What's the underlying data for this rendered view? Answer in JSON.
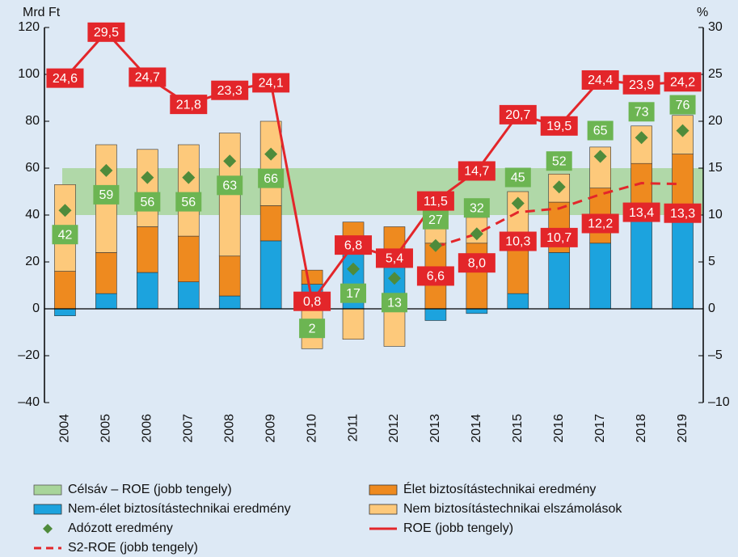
{
  "chart_data": {
    "type": "combo",
    "y_label": "Mrd Ft",
    "y2_label": "%",
    "categories": [
      "2004",
      "2005",
      "2006",
      "2007",
      "2008",
      "2009",
      "2010",
      "2011",
      "2012",
      "2013",
      "2014",
      "2015",
      "2016",
      "2017",
      "2018",
      "2019"
    ],
    "ylim": [
      -40,
      120
    ],
    "yticks": [
      {
        "value": -40,
        "label": "–40"
      },
      {
        "value": -20,
        "label": "–20"
      },
      0,
      20,
      40,
      60,
      80,
      100,
      120
    ],
    "y2lim": [
      -10,
      30
    ],
    "y2ticks": [
      {
        "value": -10,
        "label": "–10"
      },
      {
        "value": -5,
        "label": "–5"
      },
      0,
      5,
      10,
      15,
      20,
      25,
      30
    ],
    "band": {
      "name": "Célsáv – ROE (jobb tengely)",
      "range": [
        10,
        15
      ],
      "color": "#a8d59a",
      "axis": "y2"
    },
    "series": [
      {
        "name": "Nem-élet biztosítástechnikai eredmény",
        "type": "bar",
        "color": "#1ca3de",
        "values": [
          -3,
          6.5,
          15.5,
          11.5,
          5.5,
          29,
          10.5,
          25,
          18,
          -5,
          -2,
          6.5,
          24,
          28,
          38,
          39
        ]
      },
      {
        "name": "Élet biztosítástechnikai eredmény",
        "type": "bar",
        "color": "#ee8a1f",
        "values": [
          16,
          17.5,
          19.5,
          19.5,
          17,
          15,
          6,
          12,
          17,
          28,
          28,
          25,
          21.5,
          23.5,
          24,
          27
        ]
      },
      {
        "name": "Nem biztosítástechnikai elszámolások",
        "type": "bar",
        "color": "#fdc97b",
        "values": [
          37,
          46,
          33,
          39,
          52.5,
          36,
          -17,
          -13,
          -16,
          10,
          11,
          18.5,
          12,
          17.5,
          16,
          16.5
        ]
      },
      {
        "name": "Adózott eredmény",
        "type": "scatter",
        "color": "#4f8b3b",
        "label_color": "#6cb552",
        "values": [
          42,
          59,
          56,
          56,
          63,
          66,
          2,
          17,
          13,
          27,
          32,
          45,
          52,
          65,
          73,
          76
        ]
      },
      {
        "name": "ROE (jobb tengely)",
        "type": "line",
        "axis": "y2",
        "color": "#e3262a",
        "values": [
          24.6,
          29.5,
          24.7,
          21.8,
          23.3,
          24.1,
          0.8,
          6.8,
          5.4,
          11.5,
          14.7,
          20.7,
          19.5,
          24.4,
          23.9,
          24.2
        ],
        "value_labels": [
          "24,6",
          "29,5",
          "24,7",
          "21,8",
          "23,3",
          "24,1",
          "0,8",
          "6,8",
          "5,4",
          "11,5",
          "14,7",
          "20,7",
          "19,5",
          "24,4",
          "23,9",
          "24,2"
        ]
      },
      {
        "name": "S2-ROE (jobb tengely)",
        "type": "line",
        "dashed": true,
        "axis": "y2",
        "color": "#e3262a",
        "values": [
          null,
          null,
          null,
          null,
          null,
          null,
          null,
          null,
          null,
          6.6,
          8.0,
          10.3,
          10.7,
          12.2,
          13.4,
          13.3
        ],
        "value_labels": [
          null,
          null,
          null,
          null,
          null,
          null,
          null,
          null,
          null,
          "6,6",
          "8,0",
          "10,3",
          "10,7",
          "12,2",
          "13,4",
          "13,3"
        ]
      }
    ]
  }
}
